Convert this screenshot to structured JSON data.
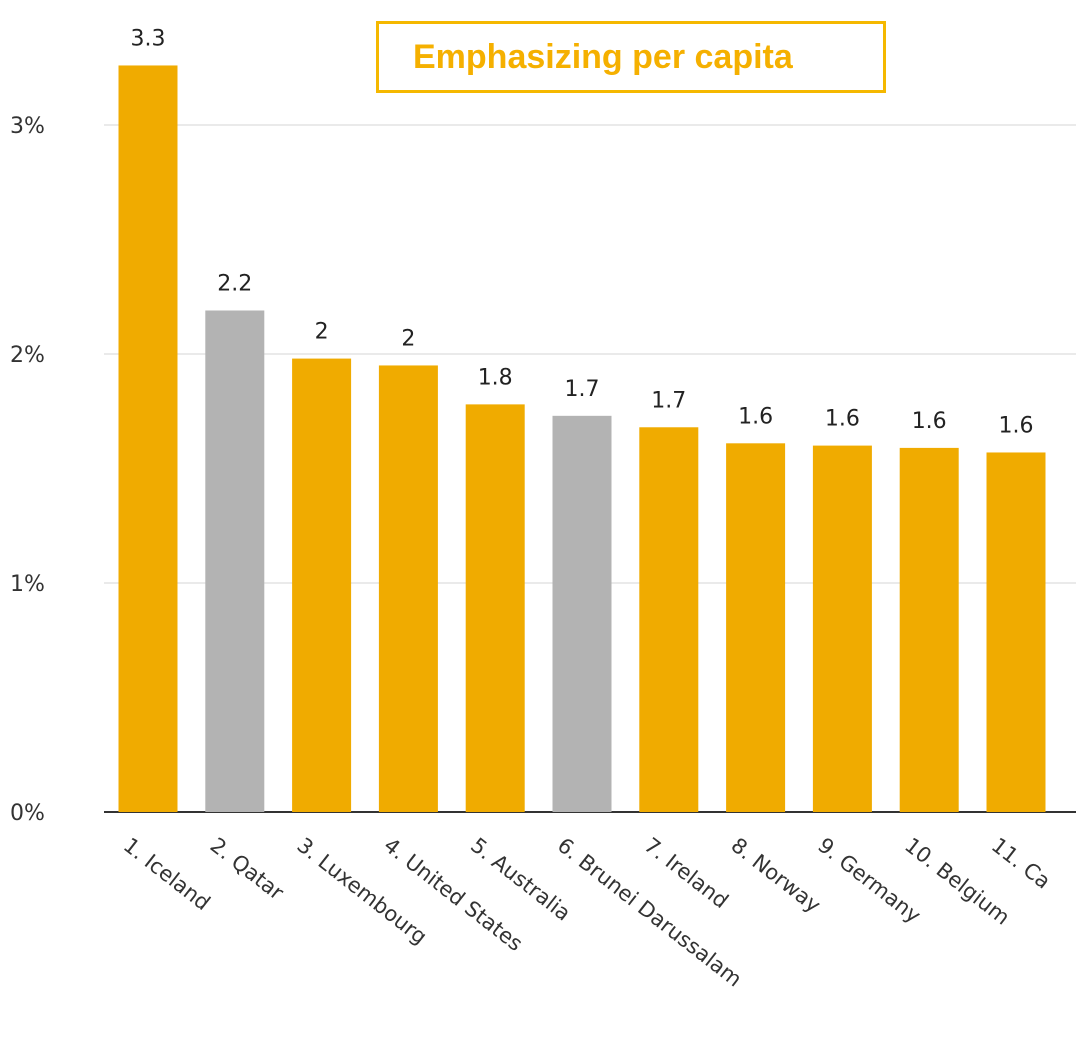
{
  "chart_data": {
    "type": "bar",
    "title": "",
    "xlabel": "",
    "ylabel": "",
    "ylim": [
      0,
      3.3
    ],
    "y_ticks": [
      {
        "value": 0,
        "label": "0%"
      },
      {
        "value": 1,
        "label": "1%"
      },
      {
        "value": 2,
        "label": "2%"
      },
      {
        "value": 3,
        "label": "3%"
      }
    ],
    "grid": true,
    "categories": [
      "1. Iceland",
      "2. Qatar",
      "3. Luxembourg",
      "4. United States",
      "5. Australia",
      "6. Brunei Darussalam",
      "7. Ireland",
      "8. Norway",
      "9. Germany",
      "10. Belgium",
      "11. Ca"
    ],
    "values": [
      3.26,
      2.19,
      1.98,
      1.95,
      1.78,
      1.73,
      1.68,
      1.61,
      1.6,
      1.59,
      1.57
    ],
    "data_labels": [
      "3.3",
      "2.2",
      "2",
      "2",
      "1.8",
      "1.7",
      "1.7",
      "1.6",
      "1.6",
      "1.6",
      "1.6"
    ],
    "bar_colors": [
      "#f0ab00",
      "#b3b3b3",
      "#f0ab00",
      "#f0ab00",
      "#f0ab00",
      "#b3b3b3",
      "#f0ab00",
      "#f0ab00",
      "#f0ab00",
      "#f0ab00",
      "#f0ab00"
    ],
    "annotation": "Emphasizing per capita"
  },
  "colors": {
    "highlight": "#f0ab00",
    "muted": "#b3b3b3",
    "callout_border": "#f5b800",
    "callout_text": "#f5b000"
  }
}
